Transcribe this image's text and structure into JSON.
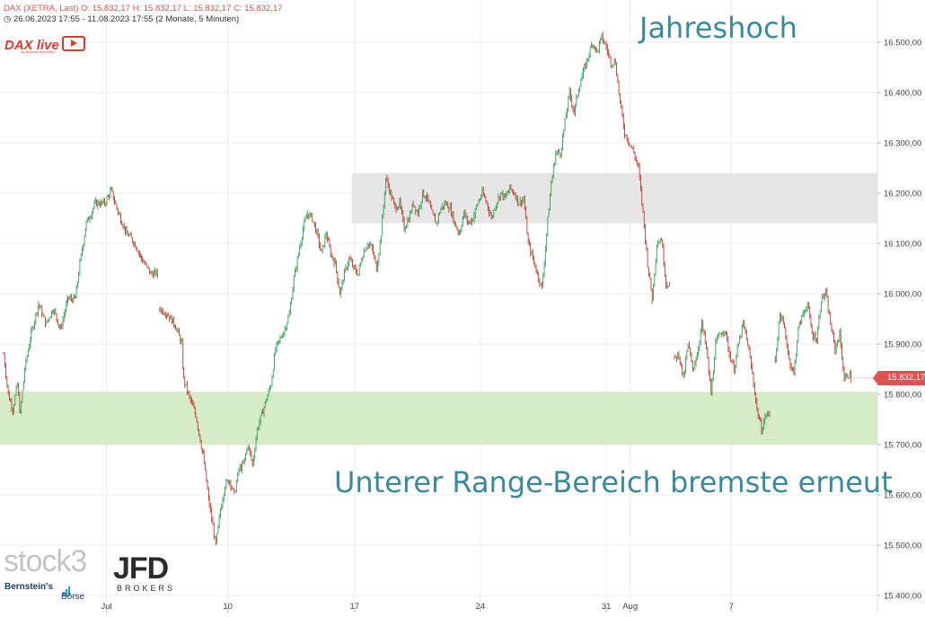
{
  "header": {
    "line1": "DAX (XETRA, Last)  O: 15.832,17  H: 15.832,17  L: 15.832,17  C: 15.832,17",
    "line2": "26.06.2023 17:55 - 11.08.2023 17:55   (2 Monate, 5 Minuten)"
  },
  "branding": {
    "dax_live": "DAX live",
    "dax_live_sub": "by Andreas Bernstein",
    "stock3": "stock3",
    "jfd": "JFD",
    "jfd_sub": "BROKERS",
    "bernstein": "Bernstein's",
    "boerse": "Börse"
  },
  "annotations": {
    "high": "Jahreshoch",
    "range": "Unterer Range-Bereich bremste erneut"
  },
  "last_price_label": "15.832,17",
  "colors": {
    "up_candle": "#2e9e50",
    "down_candle": "#c0392b",
    "price_badge": "#e05252",
    "annotation_text": "#3a8a9c",
    "support_zone": "#d6ecc9",
    "resistance_zone": "#e6e6e6"
  },
  "chart_data": {
    "type": "candlestick",
    "title": "DAX (XETRA, Last)",
    "timeframe": "5 Minuten",
    "range": "26.06.2023 17:55 - 11.08.2023 17:55",
    "ylim": [
      15400,
      16600
    ],
    "yticks": [
      "15.400,00",
      "15.500,00",
      "15.600,00",
      "15.700,00",
      "15.800,00",
      "15.900,00",
      "16.000,00",
      "16.100,00",
      "16.200,00",
      "16.300,00",
      "16.400,00",
      "16.500,00"
    ],
    "ytick_values": [
      15400,
      15500,
      15600,
      15700,
      15800,
      15900,
      16000,
      16100,
      16200,
      16300,
      16400,
      16500
    ],
    "xticks": [
      "Jul",
      "10",
      "17",
      "24",
      "31",
      "Aug",
      "7"
    ],
    "grid": true,
    "zones": [
      {
        "name": "support",
        "low": 15700,
        "high": 15805,
        "from_day": 0,
        "to_day": 47.5
      },
      {
        "name": "resistance",
        "low": 16140,
        "high": 16240,
        "from_day": 37.9,
        "to_day": 47.5
      }
    ],
    "last_close": 15832.17,
    "series": [
      {
        "name": "DAX",
        "points": [
          [
            0.0,
            15880
          ],
          [
            0.5,
            15800
          ],
          [
            1.0,
            15770
          ],
          [
            1.5,
            15820
          ],
          [
            1.8,
            15760
          ],
          [
            2.3,
            15850
          ],
          [
            3.0,
            15920
          ],
          [
            3.8,
            15980
          ],
          [
            4.6,
            15940
          ],
          [
            5.4,
            15970
          ],
          [
            6.2,
            15930
          ],
          [
            7.0,
            15990
          ],
          [
            7.8,
            15990
          ],
          [
            8.3,
            16060
          ],
          [
            9.0,
            16140
          ],
          [
            10.0,
            16180
          ],
          [
            11.0,
            16180
          ],
          [
            11.7,
            16205
          ],
          [
            12.5,
            16160
          ],
          [
            13.4,
            16120
          ],
          [
            14.3,
            16100
          ],
          [
            15.0,
            16070
          ],
          [
            16.0,
            16040
          ],
          [
            16.8,
            16040
          ],
          [
            17.0,
            15970
          ],
          [
            17.8,
            15960
          ],
          [
            18.6,
            15940
          ],
          [
            19.4,
            15900
          ],
          [
            19.6,
            15830
          ],
          [
            20.1,
            15800
          ],
          [
            20.9,
            15760
          ],
          [
            21.7,
            15680
          ],
          [
            22.4,
            15580
          ],
          [
            23.1,
            15500
          ],
          [
            23.6,
            15570
          ],
          [
            24.1,
            15620
          ],
          [
            24.6,
            15630
          ],
          [
            25.1,
            15600
          ],
          [
            25.6,
            15650
          ],
          [
            26.1,
            15660
          ],
          [
            26.6,
            15700
          ],
          [
            27.1,
            15660
          ],
          [
            27.6,
            15730
          ],
          [
            28.1,
            15760
          ],
          [
            28.6,
            15790
          ],
          [
            29.1,
            15820
          ],
          [
            29.6,
            15890
          ],
          [
            30.1,
            15910
          ],
          [
            30.6,
            15930
          ],
          [
            31.1,
            15960
          ],
          [
            31.6,
            16030
          ],
          [
            32.1,
            16080
          ],
          [
            32.6,
            16130
          ],
          [
            33.1,
            16160
          ],
          [
            33.6,
            16150
          ],
          [
            34.1,
            16120
          ],
          [
            34.6,
            16080
          ],
          [
            35.1,
            16120
          ],
          [
            35.6,
            16080
          ],
          [
            36.1,
            16060
          ],
          [
            36.6,
            16000
          ],
          [
            37.1,
            16040
          ],
          [
            37.6,
            16070
          ],
          [
            38.1,
            16050
          ],
          [
            38.6,
            16040
          ],
          [
            39.1,
            16080
          ],
          [
            39.6,
            16100
          ],
          [
            40.1,
            16090
          ],
          [
            40.6,
            16050
          ],
          [
            41.1,
            16120
          ],
          [
            41.6,
            16230
          ],
          [
            42.1,
            16200
          ],
          [
            42.6,
            16170
          ],
          [
            43.1,
            16180
          ],
          [
            43.6,
            16130
          ],
          [
            44.1,
            16150
          ],
          [
            44.6,
            16180
          ],
          [
            45.1,
            16160
          ],
          [
            45.6,
            16200
          ],
          [
            46.1,
            16190
          ],
          [
            46.6,
            16160
          ],
          [
            47.1,
            16140
          ],
          [
            47.6,
            16170
          ],
          [
            48.1,
            16180
          ],
          [
            48.6,
            16170
          ],
          [
            49.1,
            16140
          ],
          [
            49.6,
            16120
          ],
          [
            50.1,
            16160
          ],
          [
            50.6,
            16140
          ],
          [
            51.1,
            16150
          ],
          [
            51.6,
            16180
          ],
          [
            52.1,
            16200
          ],
          [
            52.6,
            16180
          ],
          [
            53.1,
            16150
          ],
          [
            53.6,
            16180
          ],
          [
            54.1,
            16200
          ],
          [
            54.6,
            16190
          ],
          [
            55.1,
            16210
          ],
          [
            55.6,
            16200
          ],
          [
            56.1,
            16180
          ],
          [
            56.6,
            16190
          ],
          [
            57.1,
            16100
          ],
          [
            57.6,
            16070
          ],
          [
            58.1,
            16040
          ],
          [
            58.6,
            16010
          ],
          [
            59.1,
            16120
          ],
          [
            59.6,
            16220
          ],
          [
            60.1,
            16280
          ],
          [
            60.6,
            16280
          ],
          [
            61.1,
            16340
          ],
          [
            61.6,
            16400
          ],
          [
            62.1,
            16360
          ],
          [
            62.6,
            16410
          ],
          [
            63.1,
            16440
          ],
          [
            63.6,
            16470
          ],
          [
            64.1,
            16500
          ],
          [
            64.6,
            16480
          ],
          [
            65.1,
            16510
          ],
          [
            65.6,
            16490
          ],
          [
            66.1,
            16460
          ],
          [
            66.6,
            16460
          ],
          [
            67.1,
            16380
          ],
          [
            67.6,
            16320
          ],
          [
            68.1,
            16300
          ],
          [
            68.6,
            16280
          ],
          [
            69.1,
            16250
          ],
          [
            69.6,
            16160
          ],
          [
            70.1,
            16060
          ],
          [
            70.6,
            15990
          ],
          [
            71.1,
            16100
          ],
          [
            71.6,
            16110
          ],
          [
            72.1,
            16020
          ],
          [
            72.6,
            16020
          ],
          [
            73.0,
            15870
          ],
          [
            73.5,
            15880
          ],
          [
            74.0,
            15830
          ],
          [
            74.5,
            15900
          ],
          [
            75.0,
            15850
          ],
          [
            75.5,
            15880
          ],
          [
            76.0,
            15940
          ],
          [
            76.5,
            15890
          ],
          [
            77.0,
            15800
          ],
          [
            77.5,
            15900
          ],
          [
            78.0,
            15920
          ],
          [
            78.5,
            15930
          ],
          [
            79.0,
            15880
          ],
          [
            79.5,
            15850
          ],
          [
            80.0,
            15900
          ],
          [
            80.5,
            15940
          ],
          [
            81.0,
            15900
          ],
          [
            81.5,
            15840
          ],
          [
            82.0,
            15770
          ],
          [
            82.5,
            15730
          ],
          [
            83.0,
            15760
          ],
          [
            83.5,
            15760
          ],
          [
            84.0,
            15870
          ],
          [
            84.5,
            15960
          ],
          [
            85.0,
            15930
          ],
          [
            85.5,
            15870
          ],
          [
            86.0,
            15840
          ],
          [
            86.5,
            15930
          ],
          [
            87.0,
            15960
          ],
          [
            87.5,
            15980
          ],
          [
            88.0,
            15920
          ],
          [
            88.5,
            15910
          ],
          [
            89.0,
            15990
          ],
          [
            89.5,
            16000
          ],
          [
            90.0,
            15940
          ],
          [
            90.5,
            15890
          ],
          [
            91.0,
            15920
          ],
          [
            91.5,
            15830
          ],
          [
            92.0,
            15840
          ],
          [
            92.3,
            15832.17
          ]
        ]
      }
    ]
  }
}
